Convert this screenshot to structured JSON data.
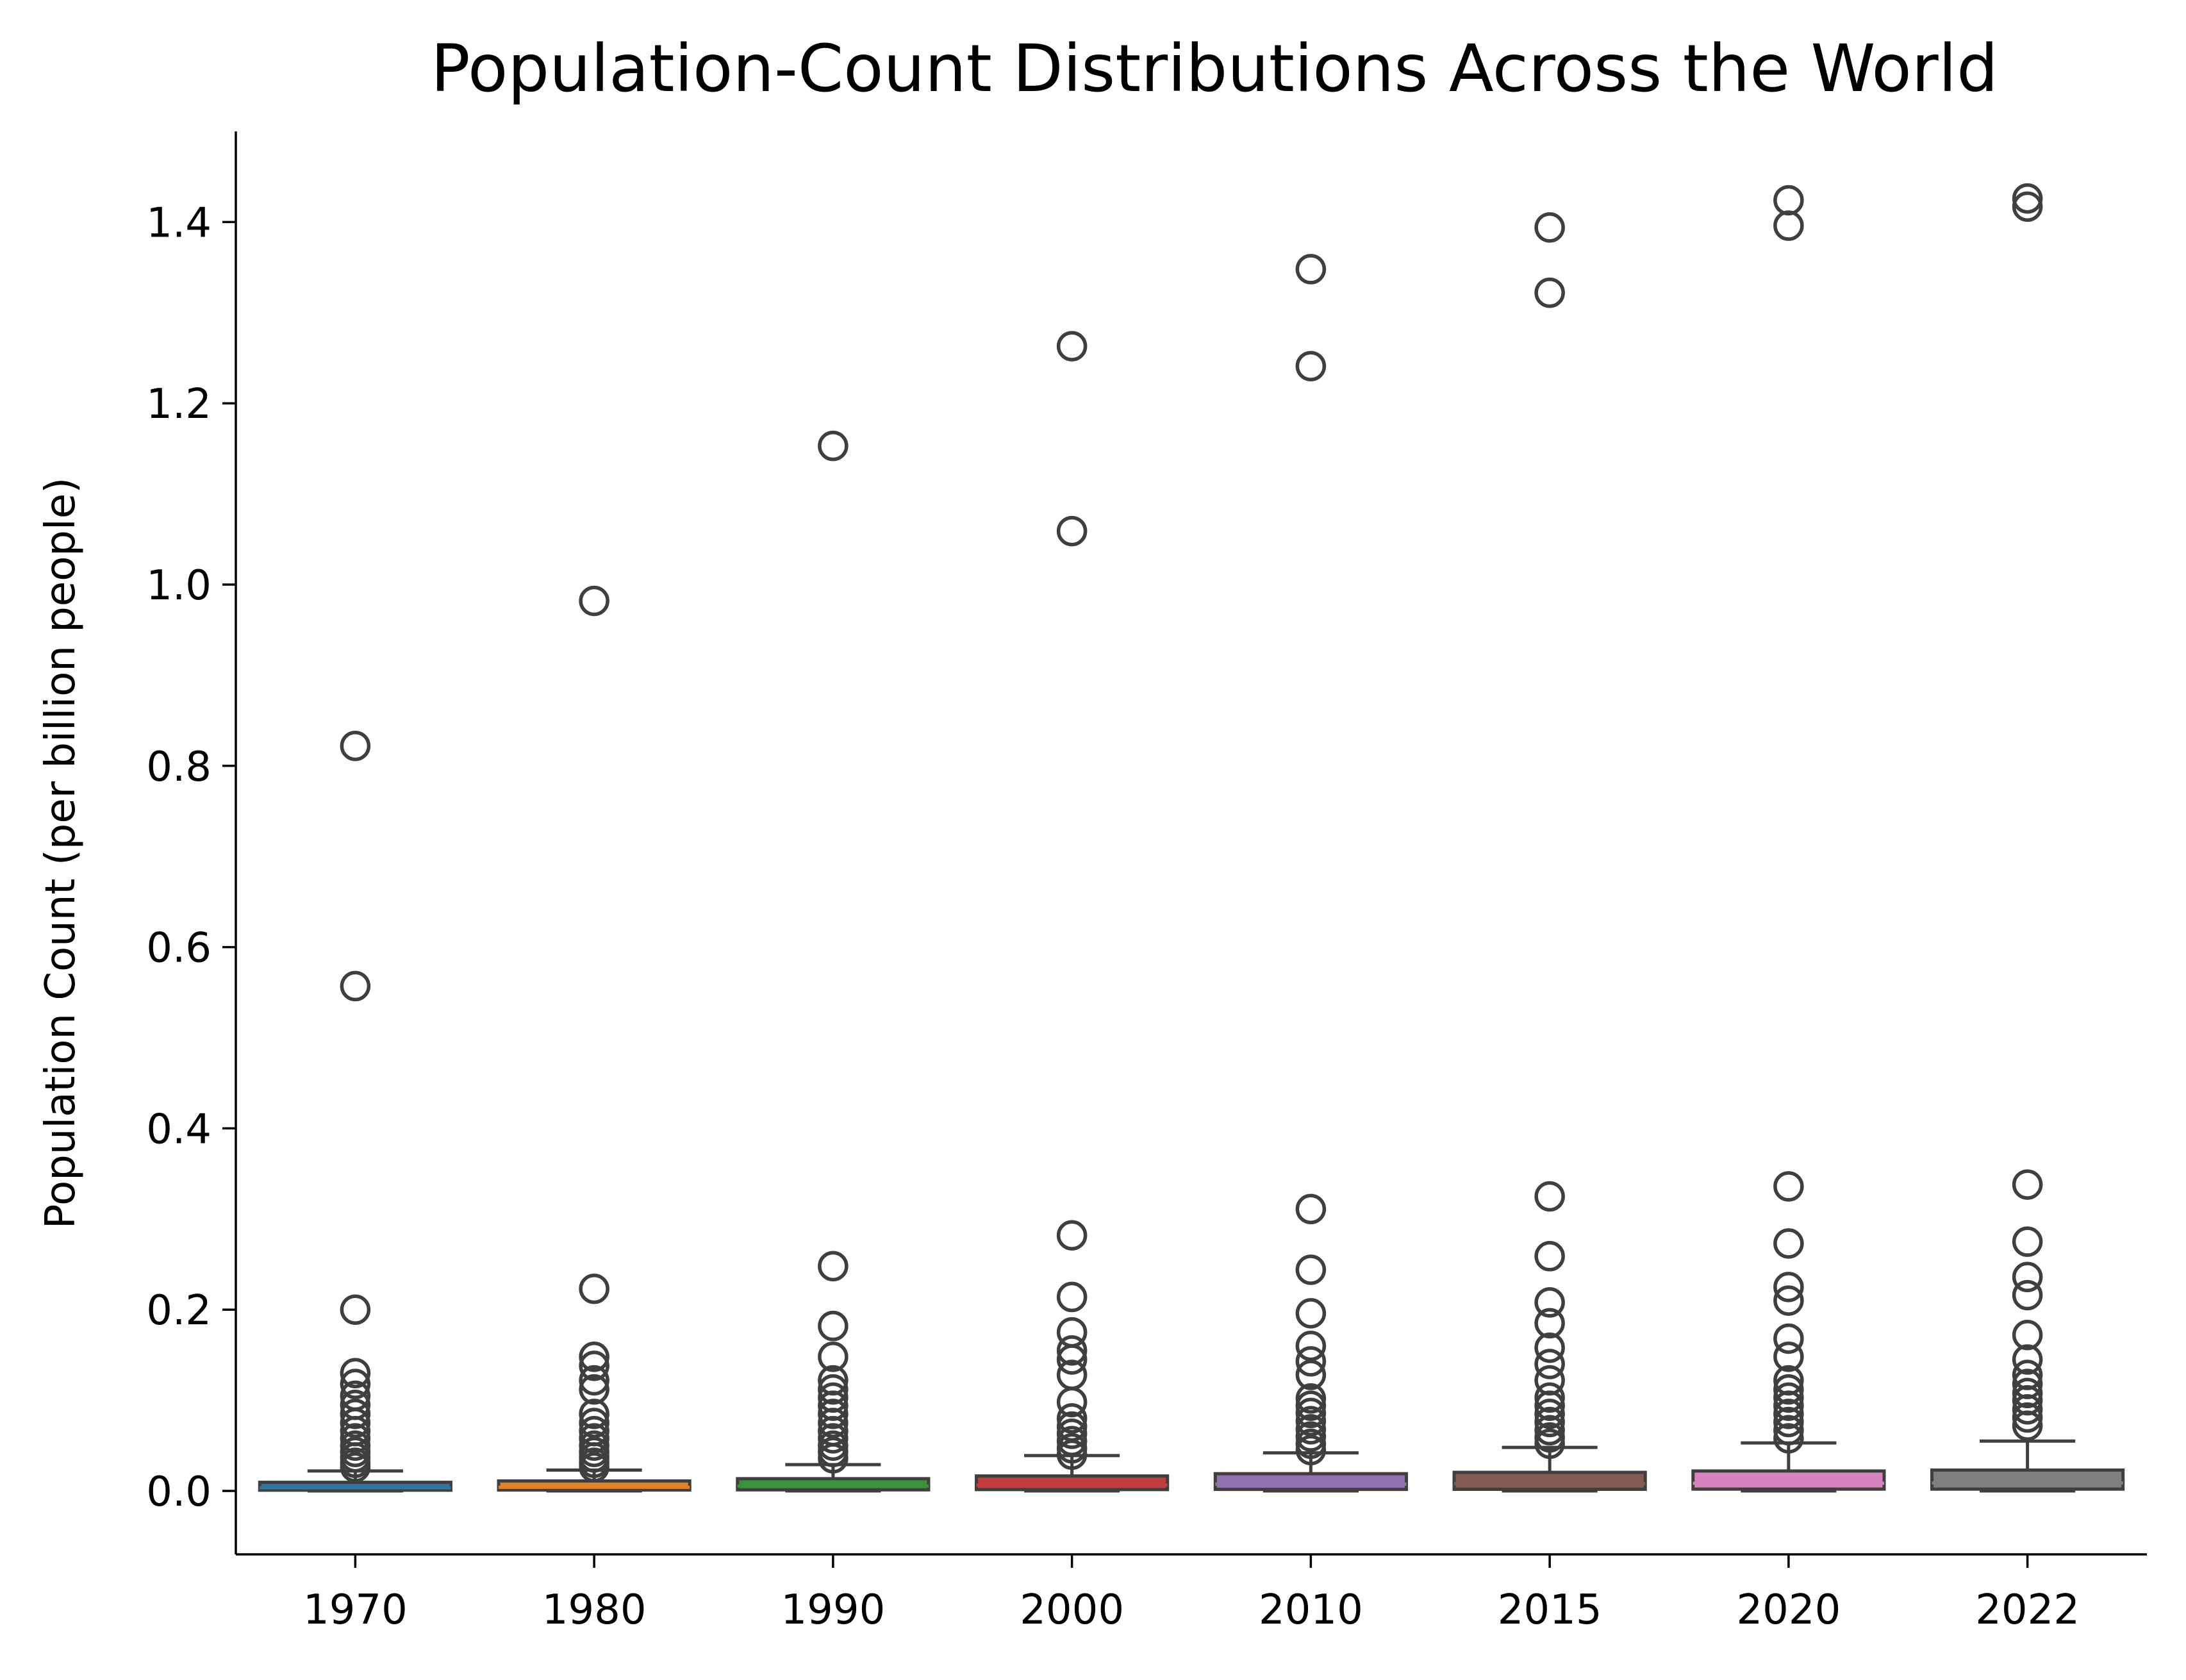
{
  "chart_data": {
    "type": "boxplot",
    "title": "Population-Count Distributions Across the World",
    "xlabel": "",
    "ylabel": "Population Count (per billion people)",
    "ylim": [
      -0.07,
      1.5
    ],
    "yticks": [
      0.0,
      0.2,
      0.4,
      0.6,
      0.8,
      1.0,
      1.2,
      1.4
    ],
    "ytick_labels": [
      "0.0",
      "0.2",
      "0.4",
      "0.6",
      "0.8",
      "1.0",
      "1.2",
      "1.4"
    ],
    "grid": false,
    "legend": "none",
    "categories": [
      "1970",
      "1980",
      "1990",
      "2000",
      "2010",
      "2015",
      "2020",
      "2022"
    ],
    "series": [
      {
        "category": "1970",
        "color": "#3274a1",
        "whisker_low": 0.0,
        "q1": 0.0008,
        "median": 0.0035,
        "q3": 0.0095,
        "whisker_high": 0.022,
        "fliers": [
          0.822,
          0.557,
          0.2,
          0.13,
          0.118,
          0.105,
          0.095,
          0.085,
          0.075,
          0.066,
          0.058,
          0.05,
          0.043,
          0.037,
          0.031,
          0.026
        ]
      },
      {
        "category": "1980",
        "color": "#e1812c",
        "whisker_low": 0.0,
        "q1": 0.001,
        "median": 0.004,
        "q3": 0.011,
        "whisker_high": 0.023,
        "fliers": [
          0.982,
          0.223,
          0.148,
          0.138,
          0.122,
          0.112,
          0.085,
          0.075,
          0.066,
          0.058,
          0.05,
          0.043,
          0.037,
          0.031,
          0.026
        ]
      },
      {
        "category": "1990",
        "color": "#3a923a",
        "whisker_low": 0.0,
        "q1": 0.0012,
        "median": 0.0055,
        "q3": 0.0135,
        "whisker_high": 0.029,
        "fliers": [
          1.153,
          0.248,
          0.182,
          0.148,
          0.122,
          0.112,
          0.103,
          0.094,
          0.085,
          0.075,
          0.066,
          0.058,
          0.05,
          0.043,
          0.036
        ]
      },
      {
        "category": "2000",
        "color": "#c03d3e",
        "whisker_low": 0.0,
        "q1": 0.0015,
        "median": 0.0065,
        "q3": 0.0165,
        "whisker_high": 0.039,
        "fliers": [
          1.263,
          1.059,
          0.282,
          0.214,
          0.175,
          0.155,
          0.145,
          0.128,
          0.098,
          0.08,
          0.071,
          0.063,
          0.055,
          0.047,
          0.04
        ]
      },
      {
        "category": "2010",
        "color": "#9372b2",
        "whisker_low": 0.0,
        "q1": 0.0017,
        "median": 0.0075,
        "q3": 0.019,
        "whisker_high": 0.042,
        "fliers": [
          1.348,
          1.241,
          0.311,
          0.244,
          0.196,
          0.16,
          0.143,
          0.128,
          0.102,
          0.094,
          0.086,
          0.077,
          0.068,
          0.06,
          0.052,
          0.045
        ]
      },
      {
        "category": "2015",
        "color": "#845b53",
        "whisker_low": 0.0,
        "q1": 0.0018,
        "median": 0.008,
        "q3": 0.0205,
        "whisker_high": 0.048,
        "fliers": [
          1.394,
          1.322,
          0.325,
          0.259,
          0.208,
          0.185,
          0.158,
          0.14,
          0.122,
          0.103,
          0.094,
          0.085,
          0.076,
          0.067,
          0.059,
          0.052
        ]
      },
      {
        "category": "2020",
        "color": "#d684bd",
        "whisker_low": 0.0,
        "q1": 0.002,
        "median": 0.0085,
        "q3": 0.022,
        "whisker_high": 0.053,
        "fliers": [
          1.424,
          1.396,
          0.336,
          0.273,
          0.225,
          0.21,
          0.168,
          0.148,
          0.122,
          0.112,
          0.103,
          0.094,
          0.085,
          0.076,
          0.067,
          0.058
        ]
      },
      {
        "category": "2022",
        "color": "#7f7f7f",
        "whisker_low": 0.0,
        "q1": 0.002,
        "median": 0.0088,
        "q3": 0.023,
        "whisker_high": 0.055,
        "fliers": [
          1.426,
          1.417,
          0.338,
          0.275,
          0.236,
          0.216,
          0.172,
          0.145,
          0.128,
          0.118,
          0.108,
          0.1,
          0.09,
          0.081,
          0.072
        ]
      }
    ]
  }
}
